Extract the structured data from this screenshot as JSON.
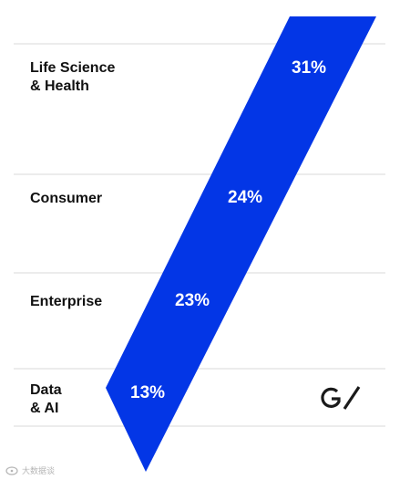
{
  "chart_data": {
    "type": "bar",
    "title": "",
    "xlabel": "",
    "ylabel": "",
    "categories": [
      "Life Science & Health",
      "Consumer",
      "Enterprise",
      "Data & AI"
    ],
    "category_lines": [
      [
        "Life Science",
        "& Health"
      ],
      [
        "Consumer"
      ],
      [
        "Enterprise"
      ],
      [
        "Data",
        "& AI"
      ]
    ],
    "values": [
      31,
      24,
      23,
      13
    ],
    "value_labels": [
      "31%",
      "24%",
      "23%",
      "13%"
    ],
    "unit": "%",
    "orientation": "horizontal-bands",
    "grid": false,
    "legend": "none"
  },
  "colors": {
    "accent": "#0336E6",
    "divider": "#d9d9d9",
    "category_text": "#111111",
    "value_text": "#ffffff",
    "logo": "#1a1a1a"
  },
  "logo": {
    "icon": "gv-logo-icon",
    "text": "GV"
  },
  "watermark": {
    "icon": "weibo-icon",
    "text": "大数据谈"
  }
}
